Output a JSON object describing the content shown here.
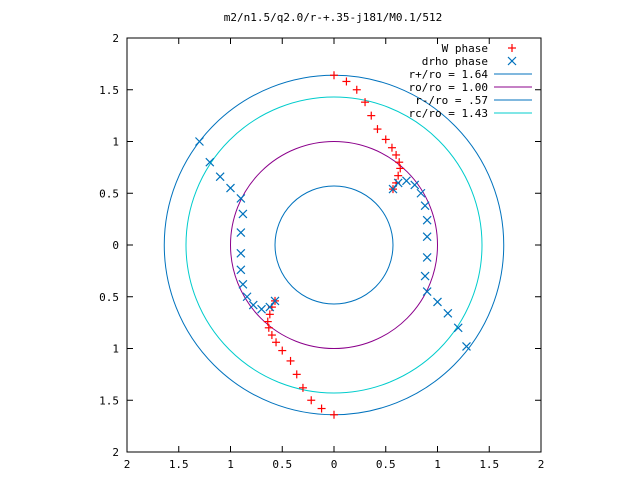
{
  "chart_data": {
    "type": "scatter",
    "title": "m2/n1.5/q2.0/r-+.35-j181/M0.1/512",
    "xlabel": "",
    "ylabel": "",
    "xlim": [
      -2,
      2
    ],
    "ylim": [
      -2,
      2
    ],
    "x_ticks": [
      "2",
      "1.5",
      "1",
      "0.5",
      "0",
      "0.5",
      "1",
      "1.5",
      "2"
    ],
    "y_ticks": [
      "2",
      "1.5",
      "1",
      "0.5",
      "0",
      "0.5",
      "1",
      "1.5",
      "2"
    ],
    "grid": false,
    "legend_position": "top-right",
    "series": [
      {
        "name": "W phase",
        "marker": "plus",
        "color": "#ff0000",
        "points": [
          [
            0.57,
            0.54
          ],
          [
            0.6,
            0.6
          ],
          [
            0.62,
            0.67
          ],
          [
            0.64,
            0.74
          ],
          [
            0.63,
            0.8
          ],
          [
            0.6,
            0.87
          ],
          [
            0.56,
            0.94
          ],
          [
            0.5,
            1.02
          ],
          [
            0.42,
            1.12
          ],
          [
            0.36,
            1.25
          ],
          [
            0.3,
            1.38
          ],
          [
            0.22,
            1.5
          ],
          [
            0.12,
            1.58
          ],
          [
            0.0,
            1.64
          ],
          [
            -0.57,
            -0.54
          ],
          [
            -0.6,
            -0.6
          ],
          [
            -0.62,
            -0.67
          ],
          [
            -0.64,
            -0.74
          ],
          [
            -0.63,
            -0.8
          ],
          [
            -0.6,
            -0.87
          ],
          [
            -0.56,
            -0.94
          ],
          [
            -0.5,
            -1.02
          ],
          [
            -0.42,
            -1.12
          ],
          [
            -0.36,
            -1.25
          ],
          [
            -0.3,
            -1.38
          ],
          [
            -0.22,
            -1.5
          ],
          [
            -0.12,
            -1.58
          ],
          [
            0.0,
            -1.64
          ]
        ]
      },
      {
        "name": "drho phase",
        "marker": "cross",
        "color": "#0072bd",
        "points": [
          [
            0.57,
            0.54
          ],
          [
            0.62,
            0.6
          ],
          [
            0.7,
            0.62
          ],
          [
            0.78,
            0.58
          ],
          [
            0.84,
            0.5
          ],
          [
            0.88,
            0.38
          ],
          [
            0.9,
            0.24
          ],
          [
            0.9,
            0.08
          ],
          [
            0.9,
            -0.12
          ],
          [
            0.88,
            -0.3
          ],
          [
            0.9,
            -0.45
          ],
          [
            1.0,
            -0.55
          ],
          [
            1.1,
            -0.66
          ],
          [
            1.2,
            -0.8
          ],
          [
            1.28,
            -0.98
          ],
          [
            -0.57,
            -0.54
          ],
          [
            -0.62,
            -0.6
          ],
          [
            -0.7,
            -0.62
          ],
          [
            -0.78,
            -0.58
          ],
          [
            -0.84,
            -0.5
          ],
          [
            -0.88,
            -0.38
          ],
          [
            -0.9,
            -0.24
          ],
          [
            -0.9,
            -0.08
          ],
          [
            -0.9,
            0.12
          ],
          [
            -0.88,
            0.3
          ],
          [
            -0.9,
            0.45
          ],
          [
            -1.0,
            0.55
          ],
          [
            -1.1,
            0.66
          ],
          [
            -1.2,
            0.8
          ],
          [
            -1.3,
            1.0
          ]
        ]
      }
    ],
    "circles": [
      {
        "name": "r+/ro = 1.64",
        "radius": 1.64,
        "color": "#0072bd"
      },
      {
        "name": "ro/ro = 1.00",
        "radius": 1.0,
        "color": "#8b008b"
      },
      {
        "name": "r-/ro = .57",
        "radius": 0.57,
        "color": "#0072bd"
      },
      {
        "name": "rc/ro = 1.43",
        "radius": 1.43,
        "color": "#00cccc"
      }
    ]
  }
}
